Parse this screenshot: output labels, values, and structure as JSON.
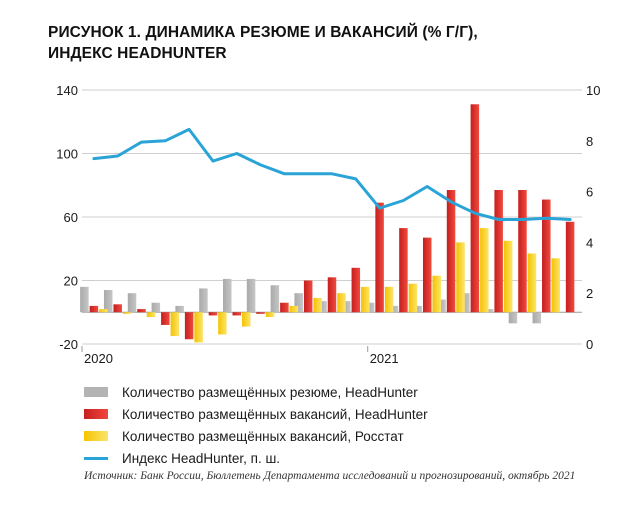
{
  "title_line1": "РИСУНОК 1. ДИНАМИКА РЕЗЮМЕ И ВАКАНСИЙ (% Г/Г),",
  "title_line2": "ИНДЕКС HEADHUNTER",
  "source": "Источник: Банк России, Бюллетень Департамента исследований и прогнозирований, октябрь 2021",
  "colors": {
    "grey": "#b3b3b3",
    "red": "#e8302c",
    "yellow": "#f7d51c",
    "blue": "#2aa4d6"
  },
  "chart_data": {
    "type": "bar",
    "categories": [
      "Jan 2020",
      "Feb 2020",
      "Mar 2020",
      "Apr 2020",
      "May 2020",
      "Jun 2020",
      "Jul 2020",
      "Aug 2020",
      "Sep 2020",
      "Oct 2020",
      "Nov 2020",
      "Dec 2020",
      "Jan 2021",
      "Feb 2021",
      "Mar 2021",
      "Apr 2021",
      "May 2021",
      "Jun 2021",
      "Jul 2021",
      "Aug 2021",
      "Sep 2021"
    ],
    "x_labels": [
      {
        "index": 0,
        "label": "2020"
      },
      {
        "index": 12,
        "label": "2021"
      }
    ],
    "y_left": {
      "lim": [
        -20,
        140
      ],
      "ticks": [
        -20,
        20,
        60,
        100,
        140
      ]
    },
    "y_right": {
      "lim": [
        0,
        10
      ],
      "ticks": [
        0,
        2,
        4,
        6,
        8,
        10
      ]
    },
    "series": [
      {
        "name": "Количество размещённых резюме, HeadHunter",
        "type": "bar",
        "axis": "left",
        "color": "#b3b3b3",
        "values": [
          16,
          14,
          12,
          6,
          4,
          15,
          21,
          21,
          17,
          12,
          7,
          7,
          6,
          4,
          4,
          8,
          12,
          2,
          -7,
          -7,
          null
        ]
      },
      {
        "name": "Количество размещённых вакансий, HeadHunter",
        "type": "bar",
        "axis": "left",
        "color": "#e8302c",
        "values": [
          4,
          5,
          2,
          -8,
          -17,
          -2,
          -2,
          -1,
          6,
          20,
          22,
          28,
          69,
          53,
          47,
          77,
          131,
          77,
          77,
          71,
          57
        ]
      },
      {
        "name": "Количество размещённых вакансий, Росстат",
        "type": "bar",
        "axis": "left",
        "color": "#f7d51c",
        "values": [
          2,
          -1,
          -3,
          -15,
          -19,
          -14,
          -9,
          -3,
          4,
          9,
          12,
          16,
          16,
          18,
          23,
          44,
          53,
          45,
          37,
          34,
          null
        ]
      },
      {
        "name": "Индекс HeadHunter, п. ш.",
        "type": "line",
        "axis": "right",
        "color": "#2aa4d6",
        "values": [
          7.3,
          7.4,
          7.95,
          8.0,
          8.45,
          7.2,
          7.5,
          7.05,
          6.7,
          6.7,
          6.7,
          6.5,
          5.35,
          5.65,
          6.2,
          5.6,
          5.15,
          4.9,
          4.9,
          4.95,
          4.9
        ]
      }
    ]
  }
}
